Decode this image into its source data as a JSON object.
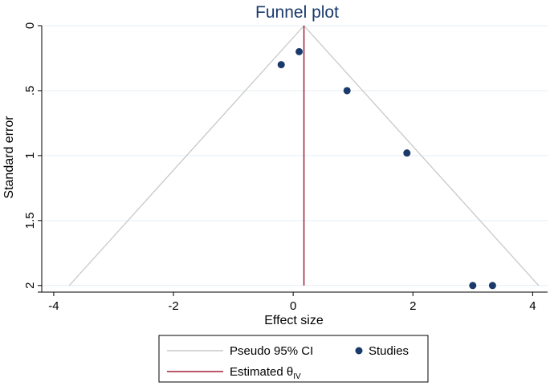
{
  "chart_data": {
    "type": "scatter",
    "title": "Funnel plot",
    "xlabel": "Effect size",
    "ylabel": "Standard error",
    "xlim": [
      -4.2,
      4.25
    ],
    "ylim": [
      0,
      2.02
    ],
    "y_reversed": true,
    "x_ticks": [
      "-4",
      "-2",
      "0",
      "2",
      "4"
    ],
    "x_tick_values": [
      -4,
      -2,
      0,
      2,
      4
    ],
    "y_ticks": [
      "0",
      ".5",
      "1",
      "1.5",
      "2"
    ],
    "y_tick_values": [
      0,
      0.5,
      1,
      1.5,
      2
    ],
    "grid": "horizontal",
    "legend_position": "bottom",
    "estimate": 0.18,
    "ci_max_se": 2.0,
    "studies": {
      "x": [
        -0.2,
        0.1,
        0.9,
        1.9,
        3.0,
        3.33
      ],
      "y": [
        0.3,
        0.2,
        0.5,
        0.98,
        2.0,
        2.0
      ]
    },
    "legend": {
      "ci_label": "Pseudo 95% CI",
      "studies_label": "Studies",
      "estimate_label": "Estimated θ",
      "estimate_subscript": "IV"
    },
    "colors": {
      "ci": "#c8c8c8",
      "estimate": "#a0203a",
      "points": "#1a3a6b",
      "grid": "#e4eef3",
      "axis": "#000000"
    }
  }
}
